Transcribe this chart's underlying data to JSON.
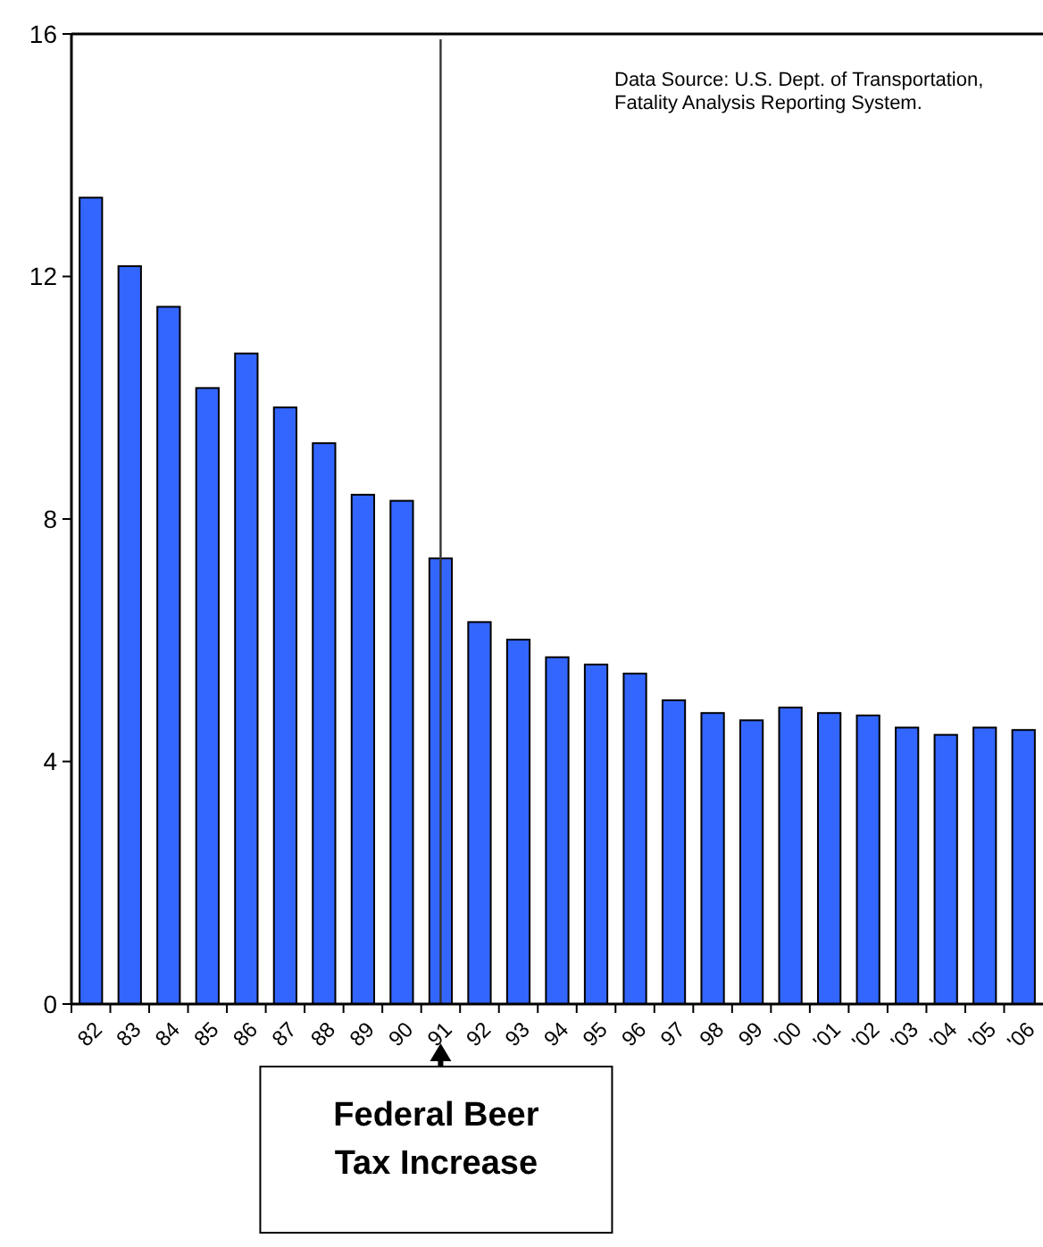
{
  "chart_data": {
    "type": "bar",
    "categories": [
      "82",
      "83",
      "84",
      "85",
      "86",
      "87",
      "88",
      "89",
      "90",
      "91",
      "92",
      "93",
      "94",
      "95",
      "96",
      "97",
      "98",
      "99",
      "'00",
      "'01",
      "'02",
      "'03",
      "'04",
      "'05",
      "'06"
    ],
    "values": [
      13.3,
      12.17,
      11.5,
      10.16,
      10.73,
      9.84,
      9.25,
      8.4,
      8.3,
      7.35,
      6.3,
      6.01,
      5.72,
      5.6,
      5.45,
      5.01,
      4.8,
      4.68,
      4.89,
      4.8,
      4.76,
      4.56,
      4.44,
      4.56,
      4.52
    ],
    "color": "#3366ff",
    "ylim": [
      0,
      16
    ],
    "yticks": [
      0,
      4,
      8,
      12,
      16
    ],
    "ref_lines": [
      {
        "axis": "x",
        "value": "91"
      }
    ],
    "annotations": [
      "Data Source: U.S. Dept. of Transportation, Fatality Analysis Reporting System.",
      "Federal Beer Tax Increase"
    ]
  }
}
